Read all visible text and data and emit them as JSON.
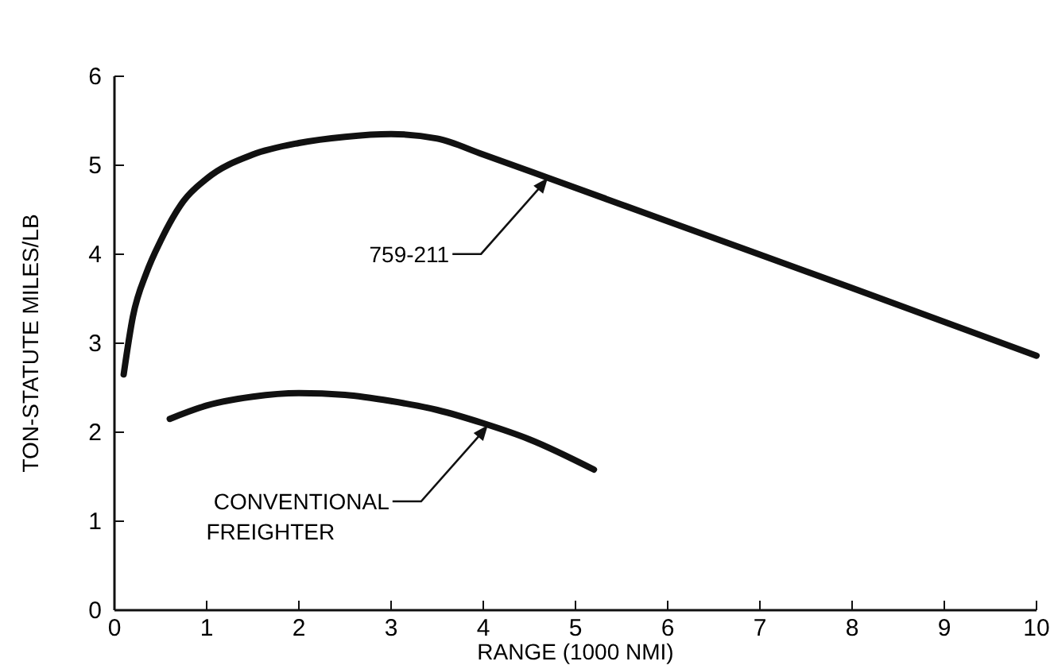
{
  "chart_data": {
    "type": "line",
    "xlabel": "RANGE (1000 NMI)",
    "ylabel": "TON-STATUTE MILES/LB",
    "xlim": [
      0,
      10
    ],
    "ylim": [
      0,
      6
    ],
    "xticks": [
      0,
      1,
      2,
      3,
      4,
      5,
      6,
      7,
      8,
      9,
      10
    ],
    "yticks": [
      0,
      1,
      2,
      3,
      4,
      5,
      6
    ],
    "grid": false,
    "marker": "none",
    "line_style": "solid",
    "series": [
      {
        "color": "#111111",
        "x": [
          0.1,
          0.2,
          0.35,
          0.5,
          0.75,
          1,
          1.5,
          2,
          2.5,
          3,
          3.5,
          4,
          4.7,
          6,
          8,
          10
        ],
        "values": [
          2.65,
          3.3,
          3.8,
          4.15,
          4.6,
          4.85,
          5.12,
          5.25,
          5.32,
          5.35,
          5.3,
          5.12,
          4.86,
          4.37,
          3.62,
          2.86
        ]
      },
      {
        "color": "#111111",
        "x": [
          0.6,
          1,
          1.5,
          2,
          2.5,
          3,
          3.5,
          4,
          4.5,
          5.2
        ],
        "values": [
          2.15,
          2.3,
          2.4,
          2.44,
          2.42,
          2.35,
          2.25,
          2.1,
          1.92,
          1.58
        ]
      }
    ],
    "annotations": [
      {
        "text": "759-211",
        "x": 4.7,
        "y": 4.86
      },
      {
        "text": "CONVENTIONAL FREIGHTER",
        "x": 4.05,
        "y": 2.08
      }
    ]
  }
}
